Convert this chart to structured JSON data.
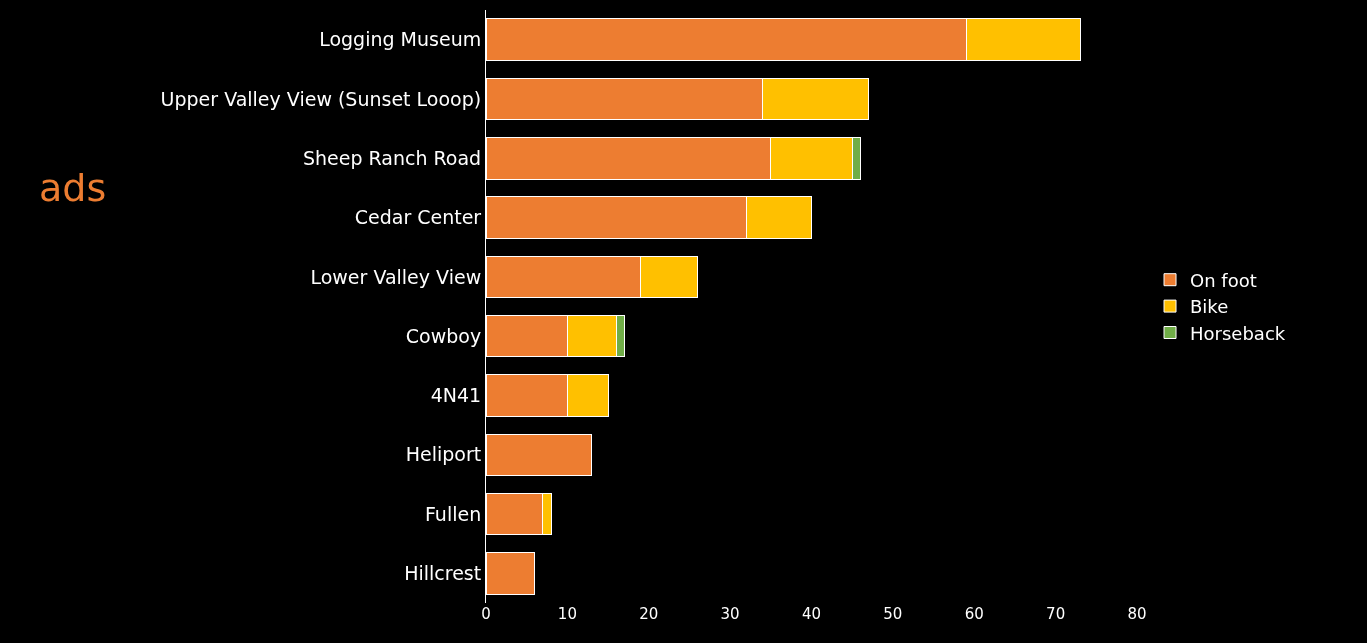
{
  "chart_data": {
    "type": "bar",
    "orientation": "horizontal",
    "stacked": true,
    "categories": [
      "Logging Museum",
      "Upper Valley View (Sunset Looop)",
      "Sheep Ranch Road",
      "Cedar Center",
      "Lower Valley View",
      "Cowboy",
      "4N41",
      "Heliport",
      "Fullen",
      "Hillcrest"
    ],
    "series": [
      {
        "name": "On foot",
        "color": "#ed7d31",
        "values": [
          59,
          34,
          35,
          32,
          19,
          10,
          10,
          13,
          7,
          6
        ]
      },
      {
        "name": "Bike",
        "color": "#ffc000",
        "values": [
          14,
          13,
          10,
          8,
          7,
          6,
          5,
          null,
          1,
          null
        ]
      },
      {
        "name": "Horseback",
        "color": "#70ad47",
        "values": [
          null,
          null,
          1,
          null,
          null,
          1,
          null,
          null,
          null,
          null
        ]
      }
    ],
    "xlim": [
      0,
      80
    ],
    "xticks": [
      0,
      10,
      20,
      30,
      40,
      50,
      60,
      70,
      80
    ],
    "grid": false,
    "legend": "right",
    "annotations": [
      "ads"
    ]
  }
}
